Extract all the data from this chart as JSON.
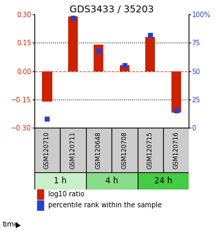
{
  "title": "GDS3433 / 35203",
  "samples": [
    "GSM120710",
    "GSM120711",
    "GSM120648",
    "GSM120708",
    "GSM120715",
    "GSM120716"
  ],
  "log10_ratio": [
    -0.16,
    0.29,
    0.14,
    0.03,
    0.18,
    -0.22
  ],
  "percentile_rank": [
    8,
    97,
    68,
    55,
    82,
    15
  ],
  "time_groups": [
    {
      "label": "1 h",
      "span": [
        0,
        2
      ],
      "color": "#c8f0c8"
    },
    {
      "label": "4 h",
      "span": [
        2,
        4
      ],
      "color": "#88dd88"
    },
    {
      "label": "24 h",
      "span": [
        4,
        6
      ],
      "color": "#44cc44"
    }
  ],
  "bar_color": "#cc2200",
  "dot_color": "#2244cc",
  "ylim_left": [
    -0.3,
    0.3
  ],
  "ylim_right": [
    0,
    100
  ],
  "yticks_left": [
    -0.3,
    -0.15,
    0,
    0.15,
    0.3
  ],
  "yticks_right": [
    0,
    25,
    50,
    75,
    100
  ],
  "hline_dotted_vals": [
    -0.15,
    0.15
  ],
  "hline_zero": 0,
  "bg_color": "#ffffff",
  "sample_box_color": "#cccccc",
  "legend_bar_label": "log10 ratio",
  "legend_dot_label": "percentile rank within the sample",
  "title_fontsize": 10,
  "tick_fontsize": 7,
  "sample_fontsize": 6.5,
  "time_fontsize": 8.5,
  "legend_fontsize": 7
}
